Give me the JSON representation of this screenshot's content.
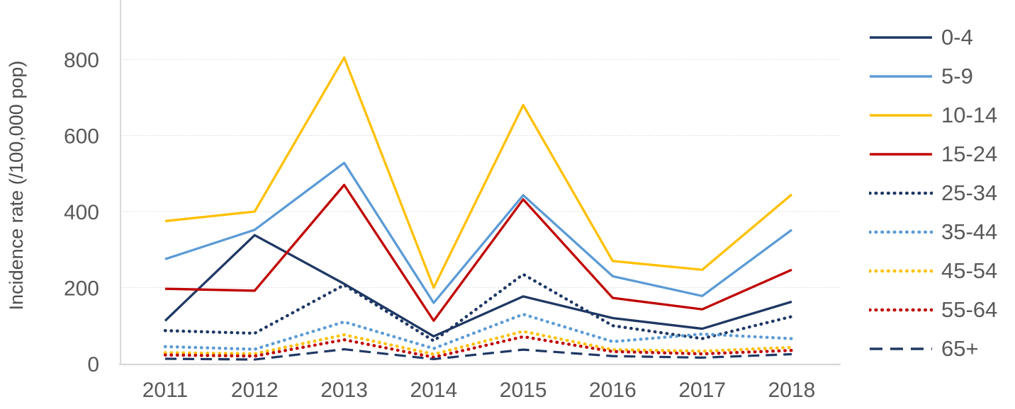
{
  "chart_data": {
    "type": "line",
    "ylabel": "Incidence rate (/100,000 pop)",
    "xlabel": "",
    "x": [
      "2011",
      "2012",
      "2013",
      "2014",
      "2015",
      "2016",
      "2017",
      "2018"
    ],
    "yticks": [
      0,
      200,
      400,
      600,
      800
    ],
    "ylim": [
      0,
      956
    ],
    "grid": true,
    "legend_position": "right",
    "axis_color": "#d9d9d9",
    "tick_label_color": "#595959",
    "series": [
      {
        "name": "0-4",
        "color": "#1F3864",
        "style": "solid",
        "values": [
          113,
          338,
          210,
          72,
          177,
          120,
          92,
          163
        ]
      },
      {
        "name": "5-9",
        "color": "#5B9BD5",
        "style": "solid",
        "values": [
          275,
          352,
          528,
          160,
          443,
          230,
          178,
          352
        ]
      },
      {
        "name": "10-14",
        "color": "#FFC000",
        "style": "solid",
        "values": [
          375,
          400,
          805,
          200,
          680,
          270,
          247,
          445
        ]
      },
      {
        "name": "15-24",
        "color": "#C00000",
        "style": "solid",
        "values": [
          197,
          192,
          470,
          113,
          432,
          173,
          143,
          247
        ]
      },
      {
        "name": "25-34",
        "color": "#1F3864",
        "style": "dotted",
        "values": [
          87,
          80,
          207,
          60,
          235,
          100,
          66,
          124
        ]
      },
      {
        "name": "35-44",
        "color": "#5B9BD5",
        "style": "dotted",
        "values": [
          45,
          38,
          110,
          40,
          130,
          58,
          78,
          66
        ]
      },
      {
        "name": "45-54",
        "color": "#FFC000",
        "style": "dotted",
        "values": [
          29,
          26,
          76,
          25,
          85,
          37,
          33,
          43
        ]
      },
      {
        "name": "55-64",
        "color": "#C00000",
        "style": "dotted",
        "values": [
          23,
          20,
          63,
          17,
          71,
          32,
          26,
          35
        ]
      },
      {
        "name": "65+",
        "color": "#1F3864",
        "style": "dashed",
        "values": [
          13,
          11,
          38,
          12,
          37,
          20,
          16,
          25
        ]
      }
    ]
  }
}
